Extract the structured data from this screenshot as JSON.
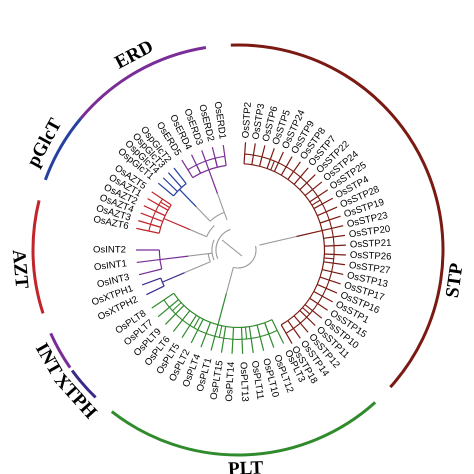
{
  "figure": {
    "colors": {
      "STP": "#7a1a12",
      "PLT": "#2f8b2c",
      "XTPH": "#3a2a8c",
      "INT": "#7a2d96",
      "AZT": "#c2242b",
      "pGlcT": "#2640a0",
      "ERD": "#7a2d96",
      "backbone": "#9a9a9a"
    },
    "groups": [
      {
        "id": "ERD",
        "label": "ERD",
        "color_key": "ERD",
        "leaves": [
          "OsERD5",
          "OsERD4",
          "OsERD3",
          "OsERD2",
          "OsERD1"
        ]
      },
      {
        "id": "pGlcT",
        "label": "pGlcT",
        "color_key": "pGlcT",
        "leaves": [
          "OspGlcT1",
          "OspGlcT4",
          "OspGlcT3",
          "OspGlcT2"
        ]
      },
      {
        "id": "AZT",
        "label": "AZT",
        "color_key": "AZT",
        "leaves": [
          "OsAZT6",
          "OsAZT3",
          "OsAZT4",
          "OsAZT2",
          "OsAZT1",
          "OsAZT5"
        ]
      },
      {
        "id": "INT",
        "label": "INT",
        "color_key": "INT",
        "leaves": [
          "OsINT2",
          "OsINT1",
          "OsINT3"
        ]
      },
      {
        "id": "XTPH",
        "label": "XTPH",
        "color_key": "XTPH",
        "leaves": [
          "OsXTPH1",
          "OsXTPH2"
        ]
      },
      {
        "id": "PLT",
        "label": "PLT",
        "color_key": "PLT",
        "leaves": [
          "OsPLT8",
          "OsPLT7",
          "OsPLT9",
          "OsPLT6",
          "OsPLT5",
          "OsPLT2",
          "OsPLT4",
          "OsPLT1",
          "OsPLT15",
          "OsPLT14",
          "OsPLT13",
          "OsPLT11",
          "OsPLT10",
          "OsPLT12",
          "OsPLT3"
        ]
      },
      {
        "id": "STP",
        "label": "STP",
        "color_key": "STP",
        "leaves": [
          "OsSTP18",
          "OsSTP14",
          "OsSTP12",
          "OsSTP11",
          "OsSTP10",
          "OsSTP15",
          "OsSTP1",
          "OsSTP16",
          "OsSTP17",
          "OsSTP13",
          "OsSTP27",
          "OsSTP26",
          "OsSTP21",
          "OsSTP20",
          "OsSTP23",
          "OsSTP19",
          "OsSTP28",
          "OsSTP4",
          "OsSTP25",
          "OsSTP24",
          "OsSTP22",
          "OsSTP7",
          "OsSTP8",
          "OsSTP9",
          "OsSTP24",
          "OsSTP5",
          "OsSTP6",
          "OsSTP3",
          "OsSTP2"
        ]
      }
    ]
  }
}
